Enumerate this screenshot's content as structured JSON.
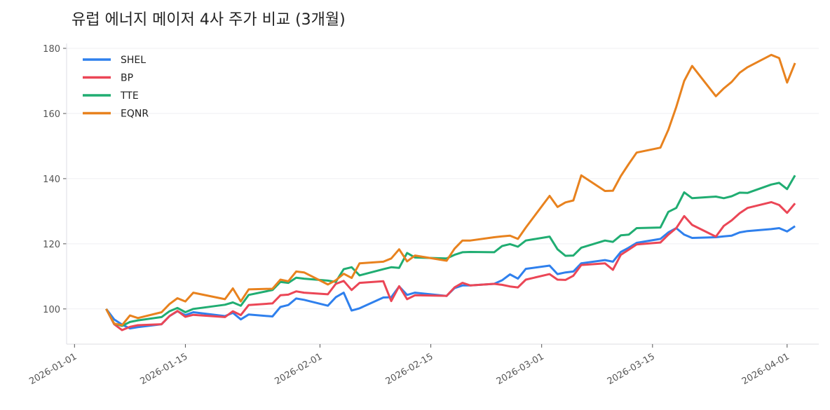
{
  "chart_data": {
    "type": "line",
    "title": "유럽 에너지 메이저 4사 주가 비교 (3개월)",
    "xlabel": "",
    "ylabel": "",
    "ylim": [
      89.2,
      181.5
    ],
    "xlim": [
      "2025-12-31",
      "2026-04-05"
    ],
    "yticks": [
      100,
      120,
      140,
      160,
      180
    ],
    "xticks": [
      "2026-01-01",
      "2026-01-15",
      "2026-02-01",
      "2026-02-15",
      "2026-03-01",
      "2026-03-15",
      "2026-04-01"
    ],
    "grid": "horizontal",
    "legend": "top-left",
    "x": [
      "2026-01-05",
      "2026-01-06",
      "2026-01-07",
      "2026-01-08",
      "2026-01-09",
      "2026-01-12",
      "2026-01-13",
      "2026-01-14",
      "2026-01-15",
      "2026-01-16",
      "2026-01-20",
      "2026-01-21",
      "2026-01-22",
      "2026-01-23",
      "2026-01-26",
      "2026-01-27",
      "2026-01-28",
      "2026-01-29",
      "2026-01-30",
      "2026-02-02",
      "2026-02-03",
      "2026-02-04",
      "2026-02-05",
      "2026-02-06",
      "2026-02-09",
      "2026-02-10",
      "2026-02-11",
      "2026-02-12",
      "2026-02-13",
      "2026-02-17",
      "2026-02-18",
      "2026-02-19",
      "2026-02-20",
      "2026-02-23",
      "2026-02-24",
      "2026-02-25",
      "2026-02-26",
      "2026-02-27",
      "2026-03-02",
      "2026-03-03",
      "2026-03-04",
      "2026-03-05",
      "2026-03-06",
      "2026-03-09",
      "2026-03-10",
      "2026-03-11",
      "2026-03-12",
      "2026-03-13",
      "2026-03-16",
      "2026-03-17",
      "2026-03-18",
      "2026-03-19",
      "2026-03-20",
      "2026-03-23",
      "2026-03-24",
      "2026-03-25",
      "2026-03-26",
      "2026-03-27",
      "2026-03-30",
      "2026-03-31",
      "2026-04-01",
      "2026-04-02"
    ],
    "series": [
      {
        "name": "SHEL",
        "color": "#2f80ed",
        "values": [
          100,
          96.8,
          95.2,
          94,
          94.4,
          95.3,
          97.8,
          99.3,
          98.1,
          99,
          97.8,
          98.8,
          96.8,
          98.3,
          97.7,
          100.6,
          101.2,
          103.2,
          102.8,
          101,
          103.6,
          105,
          99.5,
          100.2,
          103.5,
          103.6,
          106.9,
          104.3,
          105,
          104,
          106.4,
          107.2,
          107.2,
          107.7,
          108.8,
          110.6,
          109.3,
          112.3,
          113.3,
          110.7,
          111.2,
          111.5,
          114,
          115,
          114.5,
          117.5,
          118.8,
          120.3,
          121.5,
          123.5,
          124.8,
          122.8,
          121.8,
          122,
          122.3,
          122.5,
          123.5,
          123.9,
          124.5,
          124.8,
          123.8,
          125.4
        ]
      },
      {
        "name": "BP",
        "color": "#eb4656",
        "values": [
          100,
          95.3,
          93.5,
          94.5,
          95,
          95.3,
          97.8,
          99.4,
          97.6,
          98.2,
          97.5,
          99.3,
          98.1,
          101.2,
          101.7,
          104.2,
          104.4,
          105.4,
          105,
          104.5,
          107.7,
          108.6,
          105.8,
          108,
          108.5,
          102.4,
          107,
          103,
          104.2,
          104,
          106.6,
          108,
          107.2,
          107.7,
          107.4,
          106.9,
          106.6,
          109,
          110.7,
          109,
          108.9,
          110.2,
          113.5,
          114,
          112,
          116.6,
          118.2,
          119.8,
          120.4,
          122.8,
          124.8,
          128.5,
          125.8,
          122.2,
          125.5,
          127.2,
          129.4,
          131,
          132.8,
          131.9,
          129.5,
          132.4
        ]
      },
      {
        "name": "TTE",
        "color": "#20ad72",
        "values": [
          100,
          95.5,
          94.8,
          96,
          96.5,
          97.5,
          99.3,
          100.3,
          99,
          100,
          101.3,
          102,
          101,
          104.3,
          105.8,
          108.3,
          108,
          109.6,
          109.3,
          108.7,
          108.3,
          112.2,
          112.8,
          110.3,
          112.2,
          112.8,
          112.6,
          117.2,
          115.8,
          115.5,
          116.6,
          117.4,
          117.5,
          117.4,
          119.3,
          119.9,
          119.1,
          121,
          122.2,
          118.3,
          116.3,
          116.4,
          118.8,
          121,
          120.6,
          122.6,
          122.8,
          124.8,
          125,
          129.8,
          131,
          135.8,
          134,
          134.5,
          134,
          134.6,
          135.7,
          135.6,
          138.2,
          138.7,
          136.8,
          141
        ]
      },
      {
        "name": "EQNR",
        "color": "#e8821e",
        "values": [
          100,
          95.5,
          95,
          98,
          97.2,
          99,
          101.5,
          103.3,
          102.3,
          105,
          103,
          106.3,
          102.3,
          106,
          106.2,
          109,
          108.5,
          111.5,
          111.2,
          107.5,
          108.8,
          110.8,
          109.5,
          114,
          114.5,
          115.5,
          118.3,
          114.6,
          116.4,
          114.8,
          118.5,
          121,
          121,
          122,
          122.3,
          122.5,
          121.5,
          125,
          134.7,
          131.3,
          132.7,
          133.3,
          141,
          136.2,
          136.3,
          140.8,
          144.5,
          148,
          149.5,
          155,
          162,
          170,
          174.6,
          165.3,
          167.7,
          169.7,
          172.5,
          174.2,
          178,
          177,
          169.5,
          175.5
        ]
      }
    ]
  }
}
